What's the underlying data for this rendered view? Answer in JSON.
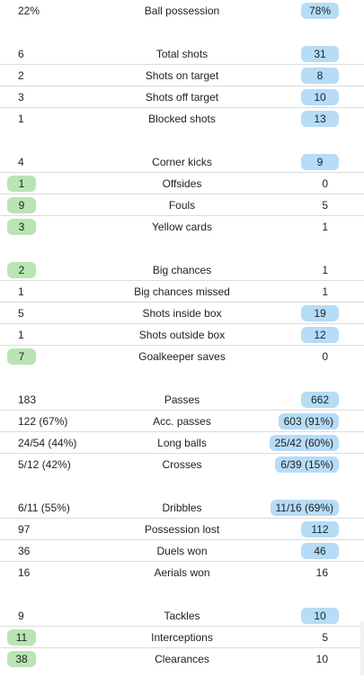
{
  "groups": [
    {
      "rows": [
        {
          "label": "Ball possession",
          "left": "22%",
          "right": "78%",
          "win": "right"
        }
      ]
    },
    {
      "rows": [
        {
          "label": "Total shots",
          "left": "6",
          "right": "31",
          "win": "right"
        },
        {
          "label": "Shots on target",
          "left": "2",
          "right": "8",
          "win": "right"
        },
        {
          "label": "Shots off target",
          "left": "3",
          "right": "10",
          "win": "right"
        },
        {
          "label": "Blocked shots",
          "left": "1",
          "right": "13",
          "win": "right"
        }
      ]
    },
    {
      "rows": [
        {
          "label": "Corner kicks",
          "left": "4",
          "right": "9",
          "win": "right"
        },
        {
          "label": "Offsides",
          "left": "1",
          "right": "0",
          "win": "left"
        },
        {
          "label": "Fouls",
          "left": "9",
          "right": "5",
          "win": "left"
        },
        {
          "label": "Yellow cards",
          "left": "3",
          "right": "1",
          "win": "left"
        }
      ]
    },
    {
      "rows": [
        {
          "label": "Big chances",
          "left": "2",
          "right": "1",
          "win": "left"
        },
        {
          "label": "Big chances missed",
          "left": "1",
          "right": "1",
          "win": "none"
        },
        {
          "label": "Shots inside box",
          "left": "5",
          "right": "19",
          "win": "right"
        },
        {
          "label": "Shots outside box",
          "left": "1",
          "right": "12",
          "win": "right"
        },
        {
          "label": "Goalkeeper saves",
          "left": "7",
          "right": "0",
          "win": "left"
        }
      ]
    },
    {
      "rows": [
        {
          "label": "Passes",
          "left": "183",
          "right": "662",
          "win": "right"
        },
        {
          "label": "Acc. passes",
          "left": "122 (67%)",
          "right": "603 (91%)",
          "win": "right"
        },
        {
          "label": "Long balls",
          "left": "24/54 (44%)",
          "right": "25/42 (60%)",
          "win": "right"
        },
        {
          "label": "Crosses",
          "left": "5/12 (42%)",
          "right": "6/39 (15%)",
          "win": "right"
        }
      ]
    },
    {
      "rows": [
        {
          "label": "Dribbles",
          "left": "6/11 (55%)",
          "right": "11/16 (69%)",
          "win": "right"
        },
        {
          "label": "Possession lost",
          "left": "97",
          "right": "112",
          "win": "right"
        },
        {
          "label": "Duels won",
          "left": "36",
          "right": "46",
          "win": "right"
        },
        {
          "label": "Aerials won",
          "left": "16",
          "right": "16",
          "win": "none"
        }
      ]
    },
    {
      "rows": [
        {
          "label": "Tackles",
          "left": "9",
          "right": "10",
          "win": "right"
        },
        {
          "label": "Interceptions",
          "left": "11",
          "right": "5",
          "win": "left"
        },
        {
          "label": "Clearances",
          "left": "38",
          "right": "10",
          "win": "left"
        }
      ]
    }
  ],
  "colors": {
    "left_highlight": "#b9e4b3",
    "right_highlight": "#b6dcf7",
    "divider": "#dcdcdc"
  }
}
